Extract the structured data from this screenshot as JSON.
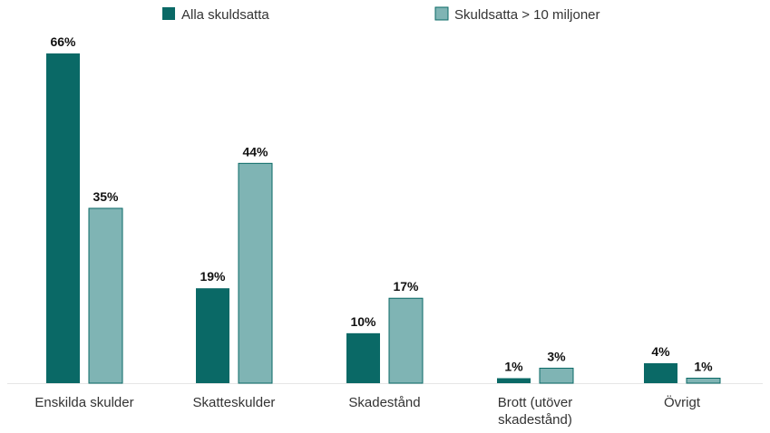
{
  "chart_data": {
    "type": "bar",
    "categories": [
      [
        "Enskilda skulder"
      ],
      [
        "Skatteskulder"
      ],
      [
        "Skadestånd"
      ],
      [
        "Brott (utöver",
        "skadestånd)"
      ],
      [
        "Övrigt"
      ]
    ],
    "series": [
      {
        "name": "Alla skuldsatta",
        "values": [
          66,
          19,
          10,
          1,
          4
        ],
        "labels": [
          "66%",
          "19%",
          "10%",
          "1%",
          "4%"
        ],
        "color": "#0a6966"
      },
      {
        "name": "Skuldsatta > 10 miljoner",
        "values": [
          35,
          44,
          17,
          3,
          1
        ],
        "labels": [
          "35%",
          "44%",
          "17%",
          "3%",
          "1%"
        ],
        "color": "#7fb4b4"
      }
    ],
    "unit": "%",
    "ylim": [
      0,
      66
    ],
    "grid": false,
    "legend_position": "top"
  }
}
